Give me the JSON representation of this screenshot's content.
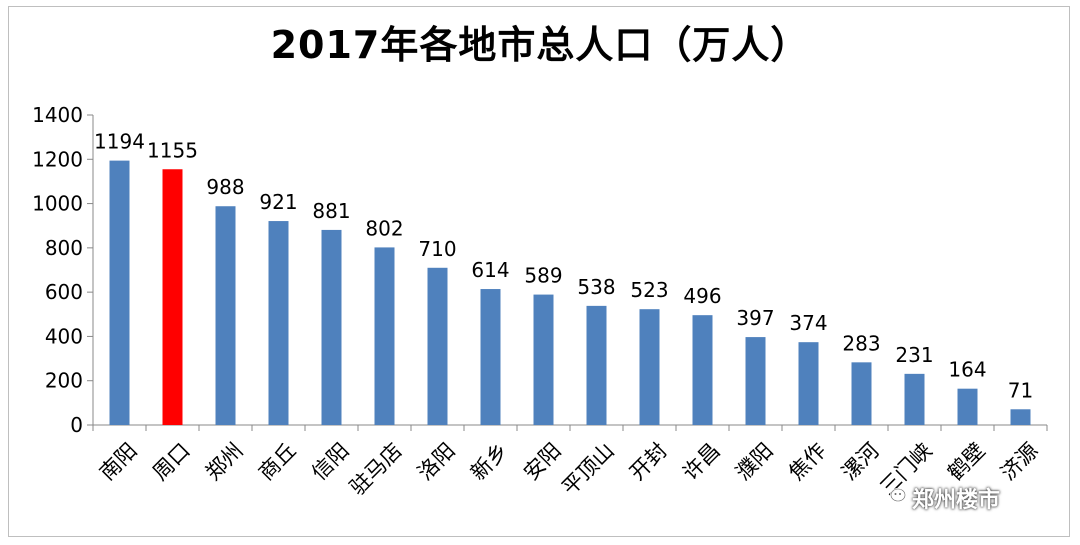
{
  "chart_data": {
    "type": "bar",
    "title": "2017年各地市总人口（万人）",
    "categories": [
      "南阳",
      "周口",
      "郑州",
      "商丘",
      "信阳",
      "驻马店",
      "洛阳",
      "新乡",
      "安阳",
      "平顶山",
      "开封",
      "许昌",
      "濮阳",
      "焦作",
      "漯河",
      "三门峡",
      "鹤壁",
      "济源"
    ],
    "values": [
      1194,
      1155,
      988,
      921,
      881,
      802,
      710,
      614,
      589,
      538,
      523,
      496,
      397,
      374,
      283,
      231,
      164,
      71
    ],
    "highlight_index": 1,
    "colors": {
      "bar": "#4f81bd",
      "highlight": "#ff0000",
      "axis": "#888888"
    },
    "ylim": [
      0,
      1400
    ],
    "yticks": [
      0,
      200,
      400,
      600,
      800,
      1000,
      1200,
      1400
    ],
    "grid": false,
    "legend": "none"
  },
  "watermark": {
    "text": "郑州楼市",
    "icon": "wechat-icon"
  }
}
